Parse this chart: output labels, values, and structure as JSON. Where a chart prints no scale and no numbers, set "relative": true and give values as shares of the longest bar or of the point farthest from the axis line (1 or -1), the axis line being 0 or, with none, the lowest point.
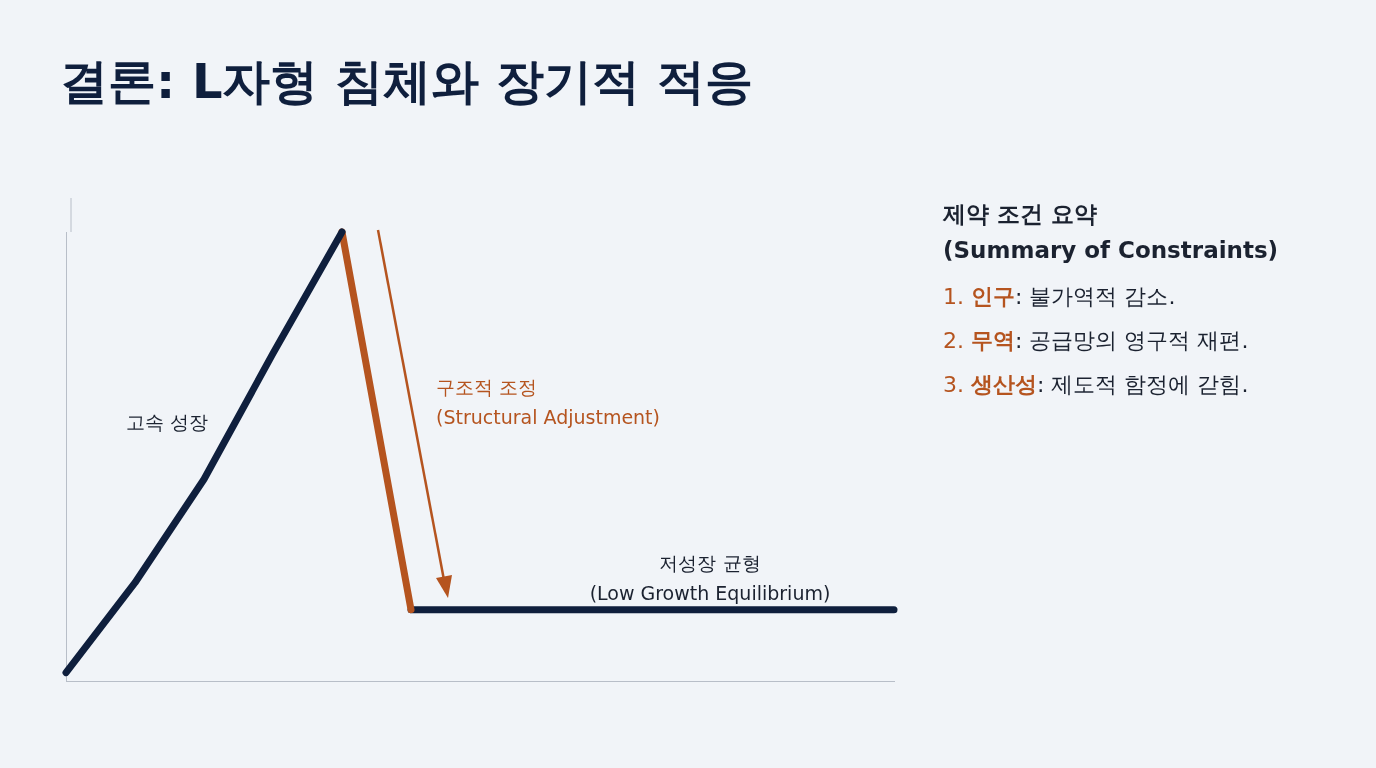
{
  "chart_data": {
    "type": "line",
    "title": "결론: L자형 침체와 장기적 적응",
    "relative": true,
    "grid": false,
    "legend": false,
    "marker": "none",
    "line_style": "solid",
    "categories": [
      null,
      null,
      null,
      null,
      null,
      null,
      null,
      null,
      null,
      null,
      null,
      null,
      null
    ],
    "series": [
      {
        "color": "#0f1f3d",
        "values": [
          0.02,
          0.22,
          0.45,
          0.73,
          1,
          null,
          null,
          null,
          null,
          null,
          null,
          null,
          null
        ]
      },
      {
        "color": "#b5541f",
        "values": [
          null,
          null,
          null,
          null,
          1,
          0.16,
          null,
          null,
          null,
          null,
          null,
          null,
          null
        ]
      },
      {
        "color": "#0f1f3d",
        "values": [
          null,
          null,
          null,
          null,
          null,
          0.16,
          0.16,
          0.16,
          0.16,
          0.16,
          0.16,
          0.16,
          0.16
        ]
      }
    ],
    "annotations": [
      "고속 성장",
      "구조적 조정\n(Structural Adjustment)",
      "저성장 균형\n(Low Growth Equilibrium)",
      "제약 조건 요약\n(Summary of Constraints)",
      "1. 인구: 불가역적 감소.",
      "2. 무역: 공급망의 영구적 재편.",
      "3. 생산성: 제도적 함정에 갇힘."
    ]
  }
}
